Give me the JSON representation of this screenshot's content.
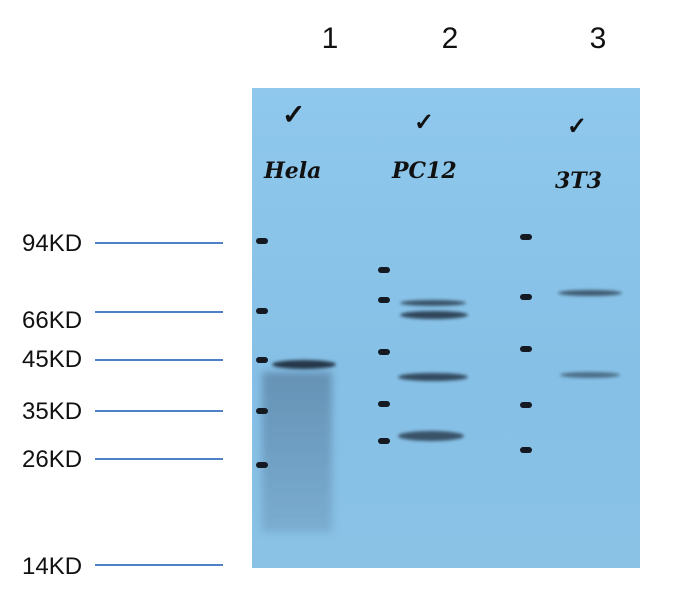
{
  "lanes": [
    {
      "number": "1",
      "label": "Hela"
    },
    {
      "number": "2",
      "label": "PC12"
    },
    {
      "number": "3",
      "label": "3T3"
    }
  ],
  "check_mark": "✓",
  "markers": [
    "94KD",
    "66KD",
    "45KD",
    "35KD",
    "26KD",
    "14KD"
  ],
  "colors": {
    "membrane": "#8cc4e8",
    "marker_line": "#4f7fc4",
    "band": "#141e2d"
  }
}
